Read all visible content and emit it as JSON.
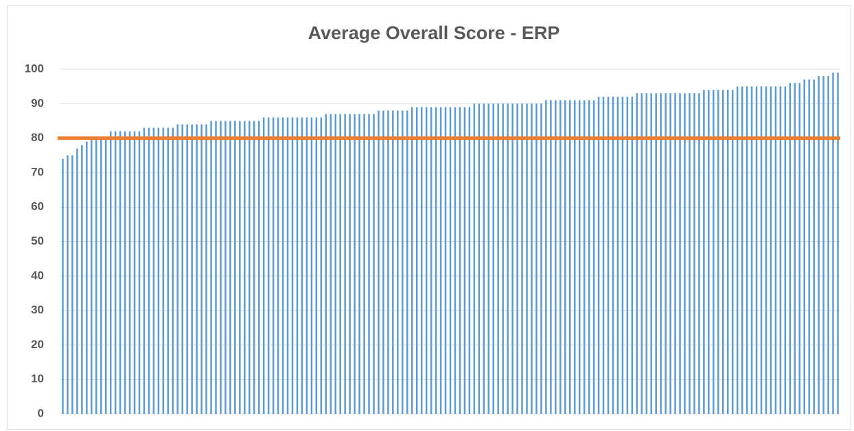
{
  "chart_data": {
    "type": "bar",
    "title": "Average Overall Score - ERP",
    "categories": [
      null,
      null,
      null,
      null,
      null,
      null,
      null,
      null,
      null,
      null,
      null,
      null,
      null,
      null,
      null,
      null,
      null,
      null,
      null,
      null,
      null,
      null,
      null,
      null,
      null,
      null,
      null,
      null,
      null,
      null,
      null,
      null,
      null,
      null,
      null,
      null,
      null,
      null,
      null,
      null,
      null,
      null,
      null,
      null,
      null,
      null,
      null,
      null,
      null,
      null,
      null,
      null,
      null,
      null,
      null,
      null,
      null,
      null,
      null,
      null,
      null,
      null,
      null,
      null,
      null,
      null,
      null,
      null,
      null,
      null,
      null,
      null,
      null,
      null,
      null,
      null,
      null,
      null,
      null,
      null,
      null,
      null,
      null,
      null,
      null,
      null,
      null,
      null,
      null,
      null,
      null,
      null,
      null,
      null,
      null,
      null,
      null,
      null,
      null,
      null,
      null,
      null,
      null,
      null,
      null,
      null,
      null,
      null,
      null,
      null,
      null,
      null,
      null,
      null,
      null,
      null,
      null,
      null,
      null,
      null,
      null,
      null,
      null,
      null,
      null,
      null,
      null,
      null,
      null,
      null,
      null,
      null,
      null,
      null,
      null,
      null,
      null,
      null,
      null,
      null,
      null,
      null,
      null,
      null,
      null,
      null,
      null,
      null,
      null,
      null,
      null,
      null,
      null,
      null,
      null,
      null,
      null,
      null,
      null,
      null,
      null,
      null,
      null
    ],
    "values": [
      74,
      75,
      75,
      77,
      78,
      79,
      80,
      80,
      80,
      80,
      82,
      82,
      82,
      82,
      82,
      82,
      82,
      83,
      83,
      83,
      83,
      83,
      83,
      83,
      84,
      84,
      84,
      84,
      84,
      84,
      84,
      85,
      85,
      85,
      85,
      85,
      85,
      85,
      85,
      85,
      85,
      85,
      86,
      86,
      86,
      86,
      86,
      86,
      86,
      86,
      86,
      86,
      86,
      86,
      86,
      87,
      87,
      87,
      87,
      87,
      87,
      87,
      87,
      87,
      87,
      87,
      88,
      88,
      88,
      88,
      88,
      88,
      88,
      89,
      89,
      89,
      89,
      89,
      89,
      89,
      89,
      89,
      89,
      89,
      89,
      89,
      90,
      90,
      90,
      90,
      90,
      90,
      90,
      90,
      90,
      90,
      90,
      90,
      90,
      90,
      90,
      91,
      91,
      91,
      91,
      91,
      91,
      91,
      91,
      91,
      91,
      91,
      92,
      92,
      92,
      92,
      92,
      92,
      92,
      92,
      93,
      93,
      93,
      93,
      93,
      93,
      93,
      93,
      93,
      93,
      93,
      93,
      93,
      93,
      94,
      94,
      94,
      94,
      94,
      94,
      94,
      95,
      95,
      95,
      95,
      95,
      95,
      95,
      95,
      95,
      95,
      95,
      96,
      96,
      96,
      97,
      97,
      97,
      98,
      98,
      98,
      99,
      99
    ],
    "color": "#5b9bd5",
    "reference_value": 80,
    "reference_color": "#ed7d31",
    "ylim": [
      0,
      100
    ],
    "yticks": [
      0,
      10,
      20,
      30,
      40,
      50,
      60,
      70,
      80,
      90,
      100
    ],
    "grid": true
  }
}
